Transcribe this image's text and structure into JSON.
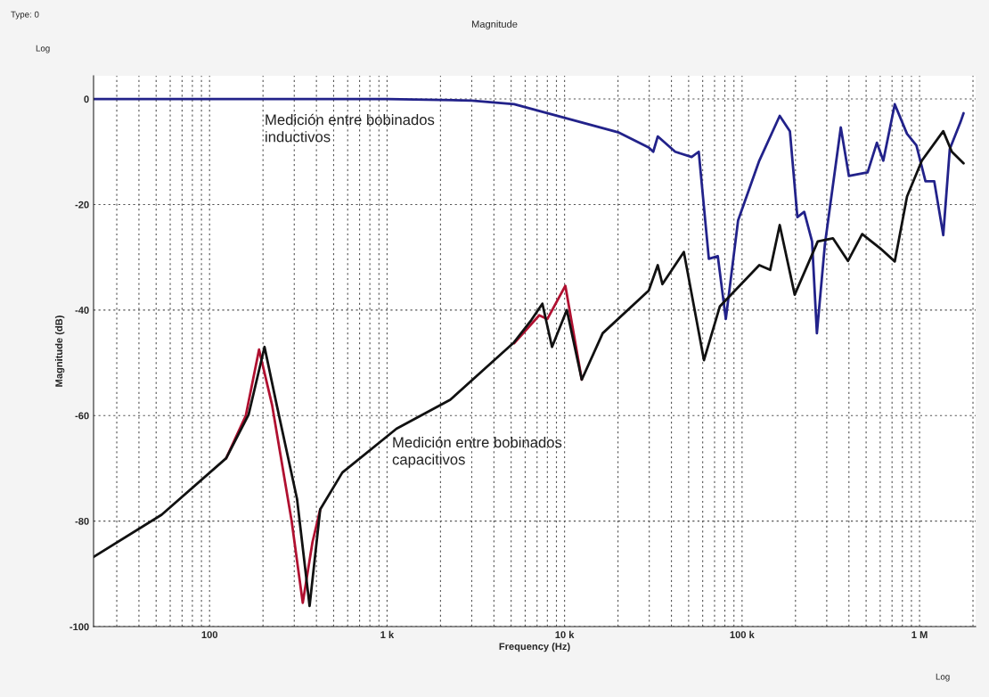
{
  "chart_data": {
    "type": "line",
    "title": "Magnitude",
    "xlabel": "Frequency (Hz)",
    "ylabel": "Magnitude (dB)",
    "log": "x",
    "grid": true,
    "line_style": "solid",
    "marker": "none",
    "xlim": [
      22.2,
      2070000
    ],
    "ylim": [
      -100,
      4.4
    ],
    "xticks": [
      {
        "value": 100,
        "label": "100"
      },
      {
        "value": 1000,
        "label": "1 k"
      },
      {
        "value": 10000,
        "label": "10 k"
      },
      {
        "value": 100000,
        "label": "100 k"
      },
      {
        "value": 1000000,
        "label": "1 M"
      }
    ],
    "yticks": [
      0,
      -20,
      -40,
      -60,
      -80,
      -100
    ],
    "series": [
      {
        "color": "#b01030",
        "x": [
          124,
          160,
          190,
          225,
          290,
          335,
          380,
          420,
          1000,
          5200,
          7200,
          8000,
          10100,
          12500
        ],
        "values": [
          -68.1,
          -60,
          -47.5,
          -58,
          -80,
          -95.5,
          -84,
          -77.8,
          null,
          -46.3,
          -41,
          -41.7,
          -35.4,
          -53.2
        ]
      },
      {
        "color": "#22228a",
        "x": [
          22.2,
          1000,
          3000,
          5200,
          20000,
          29800,
          31600,
          33500,
          42000,
          52000,
          57000,
          65000,
          73000,
          81000,
          95000,
          125000,
          163000,
          186000,
          205000,
          224000,
          248000,
          264000,
          293000,
          360000,
          400000,
          510000,
          575000,
          625000,
          725000,
          850000,
          960000,
          1080000,
          1210000,
          1360000,
          1480000,
          1700000,
          1770000
        ],
        "values": [
          0,
          0,
          -0.3,
          -1.0,
          -6.3,
          -9.2,
          -10,
          -7.1,
          -10,
          -11,
          -10,
          -30.3,
          -29.8,
          -41.7,
          -23,
          -11.7,
          -3.2,
          -6.1,
          -22.4,
          -21.4,
          -27,
          -44.4,
          -27.5,
          -5.4,
          -14.6,
          -13.9,
          -8.3,
          -11.7,
          -1.0,
          -6.6,
          -8.8,
          -15.6,
          -15.6,
          -25.8,
          -9.5,
          -4.4,
          -2.7
        ]
      },
      {
        "color": "#111111",
        "x": [
          22.2,
          53.7,
          124,
          166,
          204,
          240,
          311,
          366,
          420,
          560,
          1130,
          2270,
          5200,
          6500,
          7500,
          8500,
          10300,
          12500,
          16400,
          29800,
          33500,
          35600,
          47000,
          61000,
          75000,
          125000,
          144000,
          163000,
          198000,
          267000,
          325000,
          395000,
          475000,
          600000,
          725000,
          850000,
          1030000,
          1360000,
          1520000,
          1770000
        ],
        "values": [
          -86.8,
          -78.8,
          -68.1,
          -59.8,
          -47,
          -58.3,
          -75.8,
          -96.1,
          -77.8,
          -70.8,
          -62.5,
          -57,
          -46.1,
          -41.9,
          -38.8,
          -47,
          -40,
          -53.2,
          -44.4,
          -36.3,
          -31.5,
          -35.1,
          -29,
          -49.5,
          -39.3,
          -31.5,
          -32.4,
          -23.9,
          -37.1,
          -27,
          -26.4,
          -30.7,
          -25.6,
          -28.3,
          -30.8,
          -18.5,
          -11.7,
          -6.1,
          -10,
          -12.2
        ]
      }
    ],
    "annotations": [
      "Medición entre bobinados\ninductivos",
      "Medición entre bobinados\ncapacitivos",
      "Type: 0",
      "Log",
      "Log"
    ]
  }
}
